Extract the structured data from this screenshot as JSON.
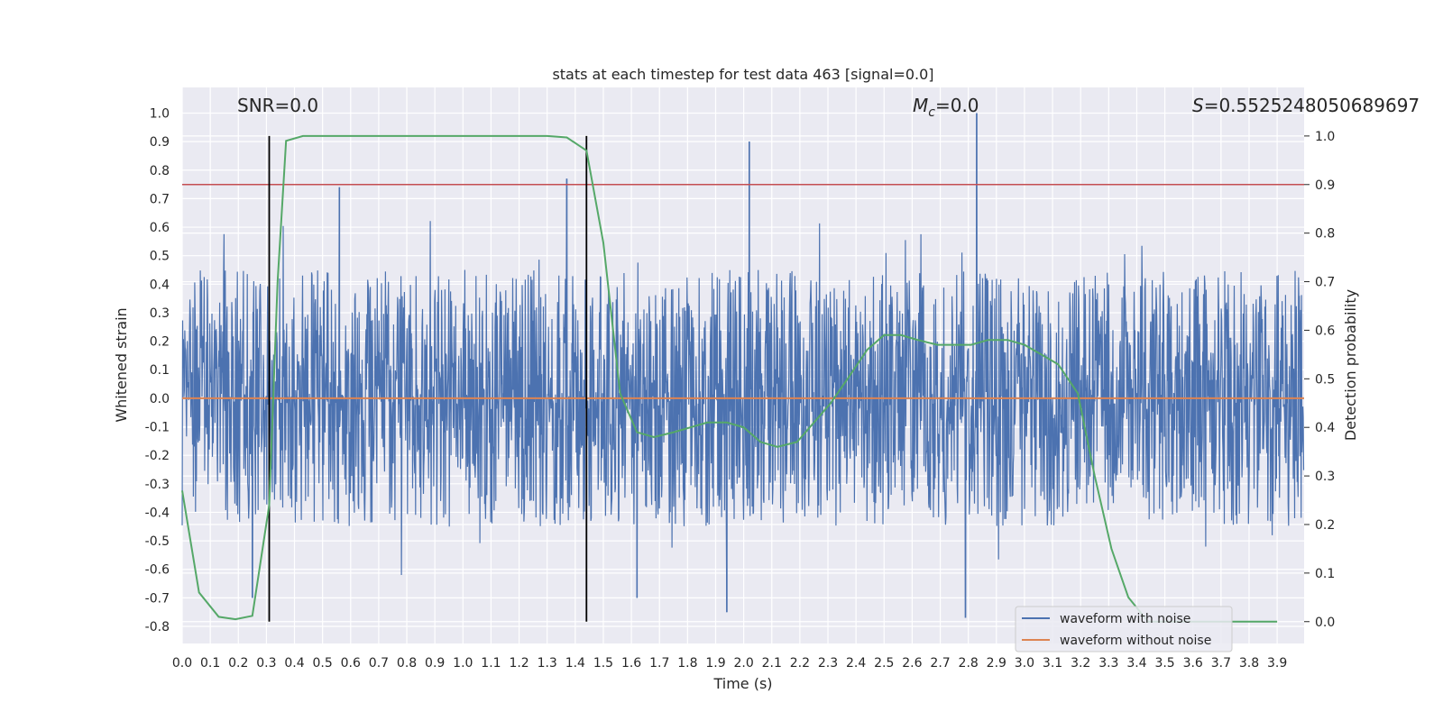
{
  "chart_data": {
    "type": "line",
    "title": "stats at each timestep for test data 463 [signal=0.0]",
    "xlabel": "Time (s)",
    "ylabel": "Whitened strain",
    "y2label": "Detection probability",
    "xlim": [
      0.0,
      3.996
    ],
    "ylim": [
      -0.86,
      1.09
    ],
    "y2lim": [
      -0.045,
      1.1
    ],
    "xticks": [
      "0.0",
      "0.1",
      "0.2",
      "0.3",
      "0.4",
      "0.5",
      "0.6",
      "0.7",
      "0.8",
      "0.9",
      "1.0",
      "1.1",
      "1.2",
      "1.3",
      "1.4",
      "1.5",
      "1.6",
      "1.7",
      "1.8",
      "1.9",
      "2.0",
      "2.1",
      "2.2",
      "2.3",
      "2.4",
      "2.5",
      "2.6",
      "2.7",
      "2.8",
      "2.9",
      "3.0",
      "3.1",
      "3.2",
      "3.3",
      "3.4",
      "3.5",
      "3.6",
      "3.7",
      "3.8",
      "3.9"
    ],
    "yticks": [
      "-0.8",
      "-0.7",
      "-0.6",
      "-0.5",
      "-0.4",
      "-0.3",
      "-0.2",
      "-0.1",
      "0.0",
      "0.1",
      "0.2",
      "0.3",
      "0.4",
      "0.5",
      "0.6",
      "0.7",
      "0.8",
      "0.9",
      "1.0"
    ],
    "y2ticks": [
      "0.0",
      "0.1",
      "0.2",
      "0.3",
      "0.4",
      "0.5",
      "0.6",
      "0.7",
      "0.8",
      "0.9",
      "1.0"
    ],
    "annotations": {
      "snr": "SNR=0.0",
      "mc_symbol": "M",
      "mc_sub": "c",
      "mc_value": "=0.0",
      "s_symbol": "S",
      "s_value": "=0.5525248050689697"
    },
    "series": [
      {
        "name": "waveform with noise",
        "color": "#4c72b0",
        "axis": "left",
        "description": "whitened noisy strain, 4 s",
        "typical_band": [
          -0.45,
          0.45
        ],
        "peaks": [
          {
            "t": 2.83,
            "v": 1.0
          },
          {
            "t": 2.02,
            "v": 0.9
          },
          {
            "t": 1.37,
            "v": 0.77
          },
          {
            "t": 0.56,
            "v": 0.74
          },
          {
            "t": 2.79,
            "v": -0.77
          },
          {
            "t": 1.94,
            "v": -0.75
          },
          {
            "t": 0.25,
            "v": -0.7
          },
          {
            "t": 1.62,
            "v": -0.7
          }
        ]
      },
      {
        "name": "waveform without noise",
        "color": "#dd8452",
        "axis": "left",
        "constant": 0.0
      },
      {
        "name": "detection probability",
        "color": "#55a868",
        "axis": "right",
        "x": [
          0.0,
          0.06,
          0.13,
          0.19,
          0.25,
          0.31,
          0.34,
          0.37,
          0.43,
          0.5,
          0.7,
          1.0,
          1.2,
          1.3,
          1.37,
          1.44,
          1.5,
          1.56,
          1.62,
          1.68,
          1.75,
          1.81,
          1.87,
          1.94,
          2.0,
          2.06,
          2.12,
          2.19,
          2.25,
          2.31,
          2.37,
          2.44,
          2.5,
          2.56,
          2.62,
          2.69,
          2.75,
          2.81,
          2.87,
          2.94,
          3.0,
          3.06,
          3.12,
          3.19,
          3.25,
          3.31,
          3.37,
          3.44,
          3.5,
          3.7,
          3.9
        ],
        "values": [
          0.27,
          0.06,
          0.01,
          0.005,
          0.012,
          0.24,
          0.7,
          0.99,
          1.0,
          1.0,
          1.0,
          1.0,
          1.0,
          1.0,
          0.997,
          0.97,
          0.78,
          0.47,
          0.39,
          0.38,
          0.39,
          0.4,
          0.41,
          0.41,
          0.4,
          0.37,
          0.36,
          0.37,
          0.41,
          0.45,
          0.5,
          0.56,
          0.59,
          0.59,
          0.58,
          0.57,
          0.57,
          0.57,
          0.58,
          0.58,
          0.57,
          0.55,
          0.53,
          0.47,
          0.3,
          0.15,
          0.05,
          0.0,
          0.0,
          0.0,
          0.0
        ]
      }
    ],
    "hlines": [
      {
        "axis": "right",
        "y": 0.9,
        "color": "#c44e52"
      }
    ],
    "vlines": [
      {
        "x": 0.31,
        "color": "#000000"
      },
      {
        "x": 1.44,
        "color": "#000000"
      }
    ],
    "legend": {
      "placement": "bottom-right",
      "entries": [
        {
          "label": "waveform with noise",
          "color": "#4c72b0"
        },
        {
          "label": "waveform without noise",
          "color": "#dd8452"
        }
      ]
    },
    "grid": true
  }
}
